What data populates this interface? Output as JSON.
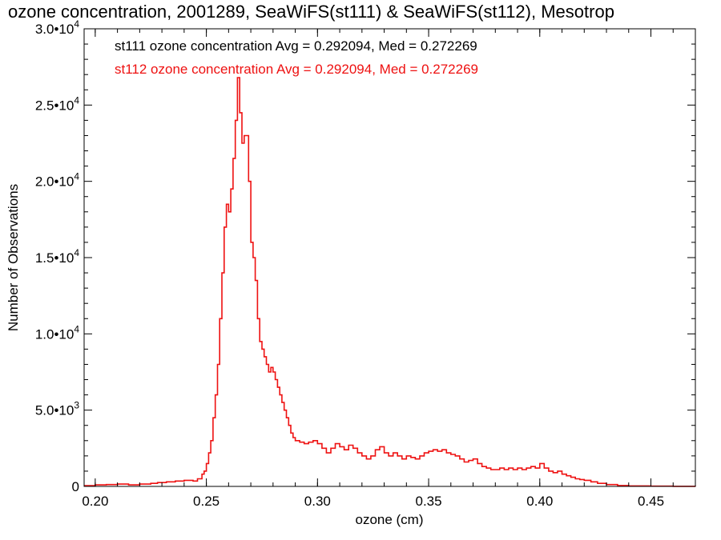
{
  "chart_data": {
    "type": "line",
    "title": "ozone concentration, 2001289, SeaWiFS(st111) & SeaWiFS(st112), Mesotrop",
    "xlabel": "ozone (cm)",
    "ylabel": "Number of Observations",
    "xlim": [
      0.195,
      0.47
    ],
    "ylim": [
      0,
      30000
    ],
    "x_ticks": [
      {
        "value": 0.2,
        "label": "0.20"
      },
      {
        "value": 0.25,
        "label": "0.25"
      },
      {
        "value": 0.3,
        "label": "0.30"
      },
      {
        "value": 0.35,
        "label": "0.35"
      },
      {
        "value": 0.4,
        "label": "0.40"
      },
      {
        "value": 0.45,
        "label": "0.45"
      }
    ],
    "y_ticks": [
      {
        "value": 0,
        "mantissa": "0",
        "exponent": ""
      },
      {
        "value": 5000,
        "mantissa": "5.0•10",
        "exponent": "3"
      },
      {
        "value": 10000,
        "mantissa": "1.0•10",
        "exponent": "4"
      },
      {
        "value": 15000,
        "mantissa": "1.5•10",
        "exponent": "4"
      },
      {
        "value": 20000,
        "mantissa": "2.0•10",
        "exponent": "4"
      },
      {
        "value": 25000,
        "mantissa": "2.5•10",
        "exponent": "4"
      },
      {
        "value": 30000,
        "mantissa": "3.0•10",
        "exponent": "4"
      }
    ],
    "grid": false,
    "legend_position": "top-left",
    "legend": [
      {
        "text": "st111 ozone concentration Avg = 0.292094, Med = 0.272269",
        "color": "#000000"
      },
      {
        "text": "st112 ozone concentration Avg = 0.292094, Med = 0.272269",
        "color": "#ee1111"
      }
    ],
    "series": [
      {
        "color": "#ee1111",
        "step": true,
        "points": [
          [
            0.195,
            50
          ],
          [
            0.2,
            100
          ],
          [
            0.205,
            120
          ],
          [
            0.21,
            150
          ],
          [
            0.215,
            100
          ],
          [
            0.22,
            150
          ],
          [
            0.225,
            200
          ],
          [
            0.228,
            250
          ],
          [
            0.232,
            300
          ],
          [
            0.236,
            350
          ],
          [
            0.24,
            400
          ],
          [
            0.244,
            350
          ],
          [
            0.246,
            500
          ],
          [
            0.248,
            800
          ],
          [
            0.249,
            1000
          ],
          [
            0.25,
            1500
          ],
          [
            0.251,
            2200
          ],
          [
            0.252,
            3000
          ],
          [
            0.253,
            4500
          ],
          [
            0.254,
            6000
          ],
          [
            0.255,
            8000
          ],
          [
            0.256,
            11000
          ],
          [
            0.257,
            14000
          ],
          [
            0.258,
            17000
          ],
          [
            0.259,
            18500
          ],
          [
            0.26,
            18000
          ],
          [
            0.261,
            19500
          ],
          [
            0.262,
            21500
          ],
          [
            0.263,
            24000
          ],
          [
            0.264,
            26800
          ],
          [
            0.265,
            24500
          ],
          [
            0.266,
            22500
          ],
          [
            0.267,
            23000
          ],
          [
            0.268,
            23000
          ],
          [
            0.269,
            20000
          ],
          [
            0.27,
            16000
          ],
          [
            0.271,
            15000
          ],
          [
            0.272,
            13500
          ],
          [
            0.273,
            11000
          ],
          [
            0.274,
            9500
          ],
          [
            0.275,
            9000
          ],
          [
            0.276,
            8500
          ],
          [
            0.277,
            8000
          ],
          [
            0.278,
            7500
          ],
          [
            0.279,
            7800
          ],
          [
            0.28,
            7500
          ],
          [
            0.281,
            7000
          ],
          [
            0.282,
            6500
          ],
          [
            0.283,
            6000
          ],
          [
            0.284,
            5500
          ],
          [
            0.285,
            5000
          ],
          [
            0.286,
            4500
          ],
          [
            0.287,
            4000
          ],
          [
            0.288,
            3500
          ],
          [
            0.289,
            3200
          ],
          [
            0.29,
            3000
          ],
          [
            0.292,
            2900
          ],
          [
            0.294,
            2800
          ],
          [
            0.296,
            2900
          ],
          [
            0.298,
            3000
          ],
          [
            0.3,
            2800
          ],
          [
            0.302,
            2500
          ],
          [
            0.304,
            2200
          ],
          [
            0.306,
            2500
          ],
          [
            0.308,
            2800
          ],
          [
            0.31,
            2600
          ],
          [
            0.312,
            2400
          ],
          [
            0.314,
            2700
          ],
          [
            0.316,
            2500
          ],
          [
            0.318,
            2200
          ],
          [
            0.32,
            2000
          ],
          [
            0.322,
            1800
          ],
          [
            0.324,
            2000
          ],
          [
            0.326,
            2400
          ],
          [
            0.328,
            2600
          ],
          [
            0.33,
            2200
          ],
          [
            0.332,
            2000
          ],
          [
            0.334,
            2200
          ],
          [
            0.336,
            2000
          ],
          [
            0.338,
            1800
          ],
          [
            0.34,
            2000
          ],
          [
            0.342,
            1900
          ],
          [
            0.344,
            1800
          ],
          [
            0.346,
            2000
          ],
          [
            0.348,
            2200
          ],
          [
            0.35,
            2300
          ],
          [
            0.352,
            2400
          ],
          [
            0.354,
            2300
          ],
          [
            0.356,
            2400
          ],
          [
            0.358,
            2200
          ],
          [
            0.36,
            2100
          ],
          [
            0.362,
            2000
          ],
          [
            0.364,
            1800
          ],
          [
            0.366,
            1600
          ],
          [
            0.368,
            1700
          ],
          [
            0.37,
            1800
          ],
          [
            0.372,
            1500
          ],
          [
            0.374,
            1300
          ],
          [
            0.376,
            1200
          ],
          [
            0.378,
            1100
          ],
          [
            0.38,
            1100
          ],
          [
            0.382,
            1200
          ],
          [
            0.384,
            1100
          ],
          [
            0.386,
            1200
          ],
          [
            0.388,
            1100
          ],
          [
            0.39,
            1200
          ],
          [
            0.392,
            1100
          ],
          [
            0.394,
            1200
          ],
          [
            0.396,
            1300
          ],
          [
            0.398,
            1200
          ],
          [
            0.4,
            1500
          ],
          [
            0.402,
            1200
          ],
          [
            0.404,
            1000
          ],
          [
            0.406,
            900
          ],
          [
            0.408,
            1000
          ],
          [
            0.41,
            800
          ],
          [
            0.412,
            700
          ],
          [
            0.414,
            600
          ],
          [
            0.416,
            500
          ],
          [
            0.418,
            450
          ],
          [
            0.42,
            400
          ],
          [
            0.423,
            300
          ],
          [
            0.426,
            200
          ],
          [
            0.43,
            120
          ],
          [
            0.435,
            60
          ],
          [
            0.44,
            30
          ],
          [
            0.45,
            15
          ],
          [
            0.46,
            5
          ],
          [
            0.47,
            0
          ]
        ]
      }
    ]
  }
}
